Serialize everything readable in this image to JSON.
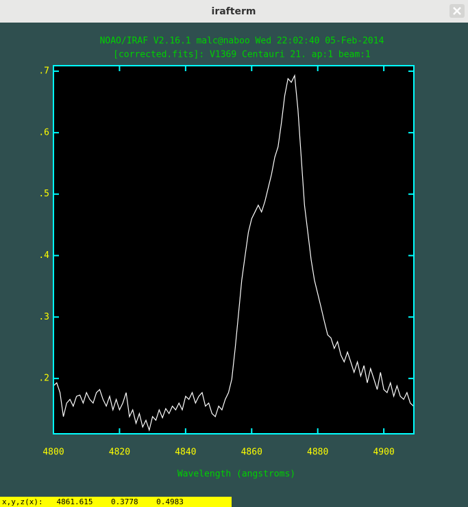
{
  "window": {
    "title": "irafterm"
  },
  "chart_data": {
    "type": "line",
    "title": "NOAO/IRAF V2.16.1 malc@naboo Wed 22:02:40 05-Feb-2014",
    "subtitle": "[corrected.fits]: V1369 Centauri 21. ap:1 beam:1",
    "x_label": "Wavelength (angstroms)",
    "x": [
      4800,
      4801,
      4802,
      4803,
      4804,
      4805,
      4806,
      4807,
      4808,
      4809,
      4810,
      4811,
      4812,
      4813,
      4814,
      4815,
      4816,
      4817,
      4818,
      4819,
      4820,
      4821,
      4822,
      4823,
      4824,
      4825,
      4826,
      4827,
      4828,
      4829,
      4830,
      4831,
      4832,
      4833,
      4834,
      4835,
      4836,
      4837,
      4838,
      4839,
      4840,
      4841,
      4842,
      4843,
      4844,
      4845,
      4846,
      4847,
      4848,
      4849,
      4850,
      4851,
      4852,
      4853,
      4854,
      4855,
      4856,
      4857,
      4858,
      4859,
      4860,
      4861,
      4862,
      4863,
      4864,
      4865,
      4866,
      4867,
      4868,
      4869,
      4870,
      4871,
      4872,
      4873,
      4874,
      4875,
      4876,
      4877,
      4878,
      4879,
      4880,
      4881,
      4882,
      4883,
      4884,
      4885,
      4886,
      4887,
      4888,
      4889,
      4890,
      4891,
      4892,
      4893,
      4894,
      4895,
      4896,
      4897,
      4898,
      4899,
      4900,
      4901,
      4902,
      4903,
      4904,
      4905,
      4906,
      4907,
      4908,
      4909
    ],
    "series": [
      {
        "color": "#ffffff",
        "values": [
          0.188,
          0.193,
          0.177,
          0.138,
          0.16,
          0.166,
          0.155,
          0.171,
          0.173,
          0.16,
          0.177,
          0.166,
          0.16,
          0.177,
          0.182,
          0.166,
          0.155,
          0.171,
          0.149,
          0.166,
          0.149,
          0.16,
          0.177,
          0.138,
          0.149,
          0.127,
          0.143,
          0.121,
          0.132,
          0.116,
          0.138,
          0.132,
          0.149,
          0.136,
          0.151,
          0.143,
          0.155,
          0.149,
          0.16,
          0.149,
          0.171,
          0.166,
          0.177,
          0.16,
          0.171,
          0.177,
          0.155,
          0.16,
          0.143,
          0.138,
          0.155,
          0.149,
          0.166,
          0.177,
          0.199,
          0.249,
          0.304,
          0.36,
          0.399,
          0.438,
          0.46,
          0.471,
          0.482,
          0.471,
          0.488,
          0.51,
          0.532,
          0.56,
          0.577,
          0.616,
          0.66,
          0.688,
          0.682,
          0.693,
          0.638,
          0.56,
          0.482,
          0.438,
          0.393,
          0.36,
          0.338,
          0.316,
          0.293,
          0.271,
          0.266,
          0.249,
          0.26,
          0.238,
          0.227,
          0.243,
          0.227,
          0.21,
          0.227,
          0.204,
          0.221,
          0.193,
          0.216,
          0.199,
          0.182,
          0.21,
          0.182,
          0.177,
          0.193,
          0.171,
          0.188,
          0.171,
          0.166,
          0.177,
          0.16,
          0.155
        ]
      }
    ],
    "xlim": [
      4800,
      4909.1
    ],
    "xticks": [
      4800,
      4820,
      4840,
      4860,
      4880,
      4900
    ],
    "ylim": [
      0.11,
      0.709
    ],
    "yticks": [
      {
        "value": 0.2,
        "label": ".2"
      },
      {
        "value": 0.3,
        "label": ".3"
      },
      {
        "value": 0.4,
        "label": ".4"
      },
      {
        "value": 0.5,
        "label": ".5"
      },
      {
        "value": 0.6,
        "label": ".6"
      },
      {
        "value": 0.7,
        "label": ".7"
      }
    ]
  },
  "status_bar": {
    "text": "x,y,z(x):   4861.615    0.3778    0.4983"
  }
}
